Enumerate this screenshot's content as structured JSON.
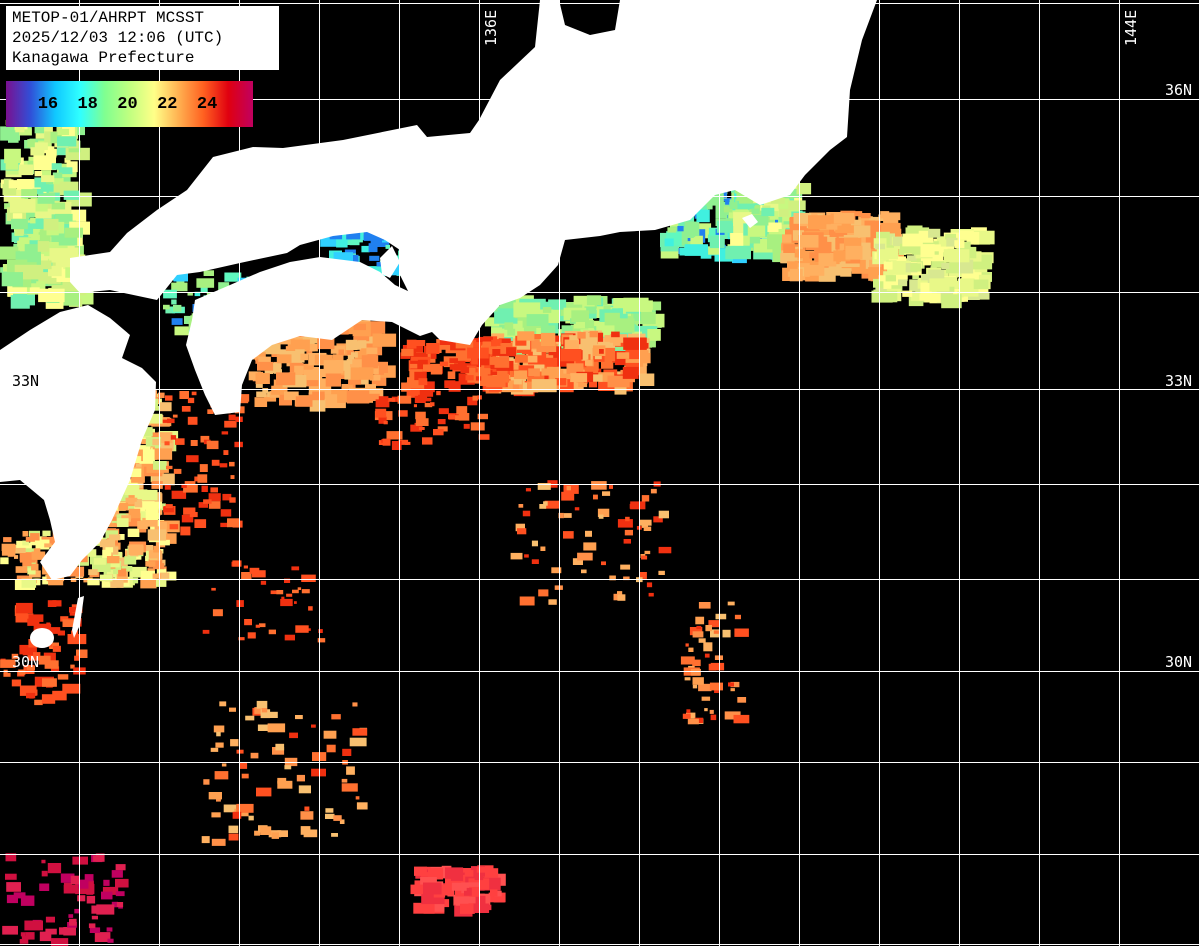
{
  "header": {
    "line1": "METOP-01/AHRPT MCSST",
    "line2": "2025/12/03 12:06 (UTC)",
    "line3": "Kanagawa Prefecture"
  },
  "colorbar": {
    "ticks": [
      "16",
      "18",
      "20",
      "22",
      "24"
    ],
    "colors": [
      "#7a1090",
      "#3050d8",
      "#10c8ff",
      "#30ffff",
      "#80ff90",
      "#c0ff80",
      "#ffff88",
      "#ffb050",
      "#ff6020",
      "#e00010",
      "#c00060"
    ]
  },
  "grid": {
    "lon_labels": [
      "136E",
      "144E"
    ],
    "lat_labels_right": [
      "36N",
      "33N",
      "30N"
    ],
    "lat_labels_left": [
      "33N",
      "30N"
    ],
    "color": "#ffffff"
  },
  "map": {
    "land_color": "#ffffff",
    "nodata_color": "#000000"
  }
}
